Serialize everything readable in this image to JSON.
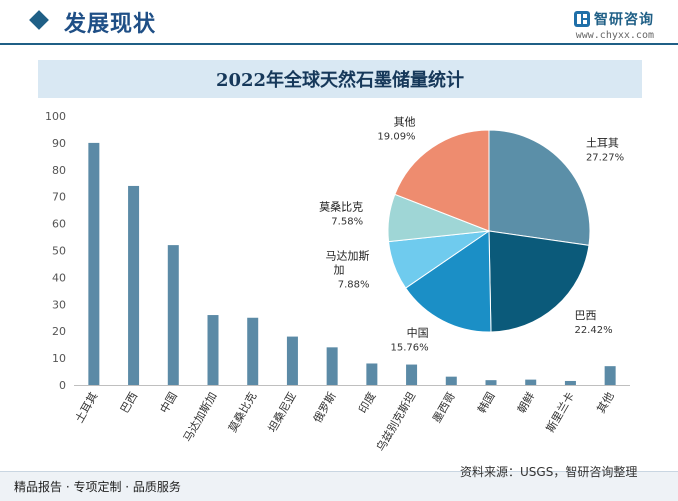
{
  "header": {
    "section_title": "发展现状",
    "logo_text": "智研咨询",
    "logo_url": "www.chyxx.com"
  },
  "chart_title": "2022年全球天然石墨储量统计",
  "source_note": "资料来源：USGS，智研咨询整理",
  "footer_note": "精品报告 · 专项定制 · 品质服务",
  "colors": {
    "bar": "#5b8aa6",
    "pie": [
      "#5b8fa8",
      "#0b5a7a",
      "#1b8fc6",
      "#6fcbee",
      "#9fd6d6",
      "#ee8c6f"
    ]
  },
  "chart_data": [
    {
      "type": "bar",
      "categories": [
        "土耳其",
        "巴西",
        "中国",
        "马达加斯加",
        "莫桑比克",
        "坦桑尼亚",
        "俄罗斯",
        "印度",
        "乌兹别克斯坦",
        "墨西哥",
        "韩国",
        "朝鲜",
        "斯里兰卡",
        "其他"
      ],
      "values": [
        90,
        74,
        52,
        26,
        25,
        18,
        14,
        8,
        7.6,
        3.1,
        1.8,
        2,
        1.5,
        7
      ],
      "ylim": [
        0,
        100
      ],
      "yticks": [
        0,
        10,
        20,
        30,
        40,
        50,
        60,
        70,
        80,
        90,
        100
      ],
      "grid": false
    },
    {
      "type": "pie",
      "slices": [
        {
          "label": "土耳其",
          "value": 27.27,
          "pct_text": "27.27%"
        },
        {
          "label": "巴西",
          "value": 22.42,
          "pct_text": "22.42%"
        },
        {
          "label": "中国",
          "value": 15.76,
          "pct_text": "15.76%"
        },
        {
          "label": "马达加斯加",
          "value": 7.88,
          "pct_text": "7.88%"
        },
        {
          "label": "莫桑比克",
          "value": 7.58,
          "pct_text": "7.58%"
        },
        {
          "label": "其他",
          "value": 19.09,
          "pct_text": "19.09%"
        }
      ]
    }
  ]
}
